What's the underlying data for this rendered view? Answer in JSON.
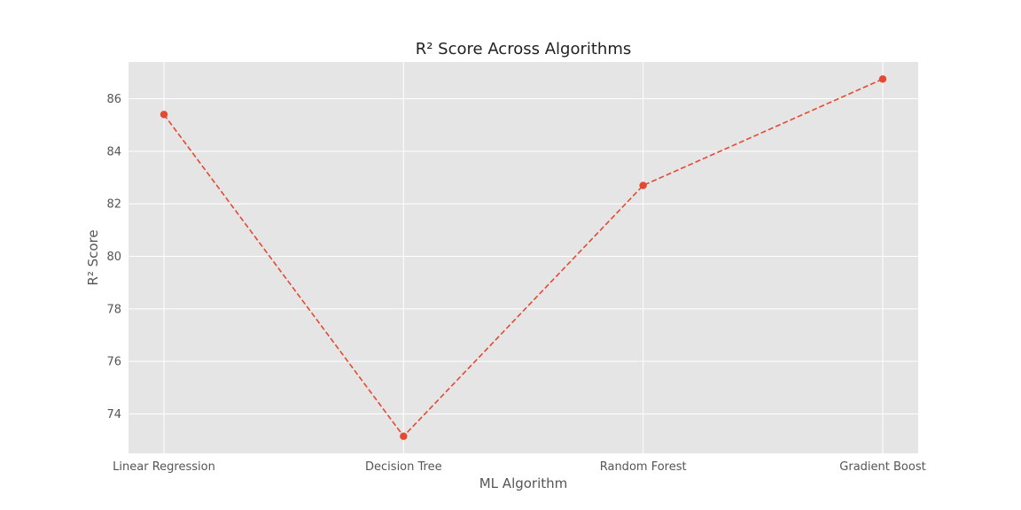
{
  "chart_data": {
    "type": "line",
    "title": "R² Score Across Algorithms",
    "xlabel": "ML Algorithm",
    "ylabel": "R² Score",
    "categories": [
      "Linear Regression",
      "Decision Tree",
      "Random Forest",
      "Gradient Boost"
    ],
    "series": [
      {
        "values": [
          85.4,
          73.15,
          82.7,
          86.75
        ],
        "color": "#E24A33",
        "line_style": "dashed",
        "marker": "circle"
      }
    ],
    "yticks": [
      74,
      76,
      78,
      80,
      82,
      84,
      86
    ],
    "ylim": [
      72.5,
      87.4
    ],
    "grid": true,
    "legend": "none",
    "style": "ggplot",
    "background_color": "#E5E5E5",
    "grid_color": "#FFFFFF"
  }
}
